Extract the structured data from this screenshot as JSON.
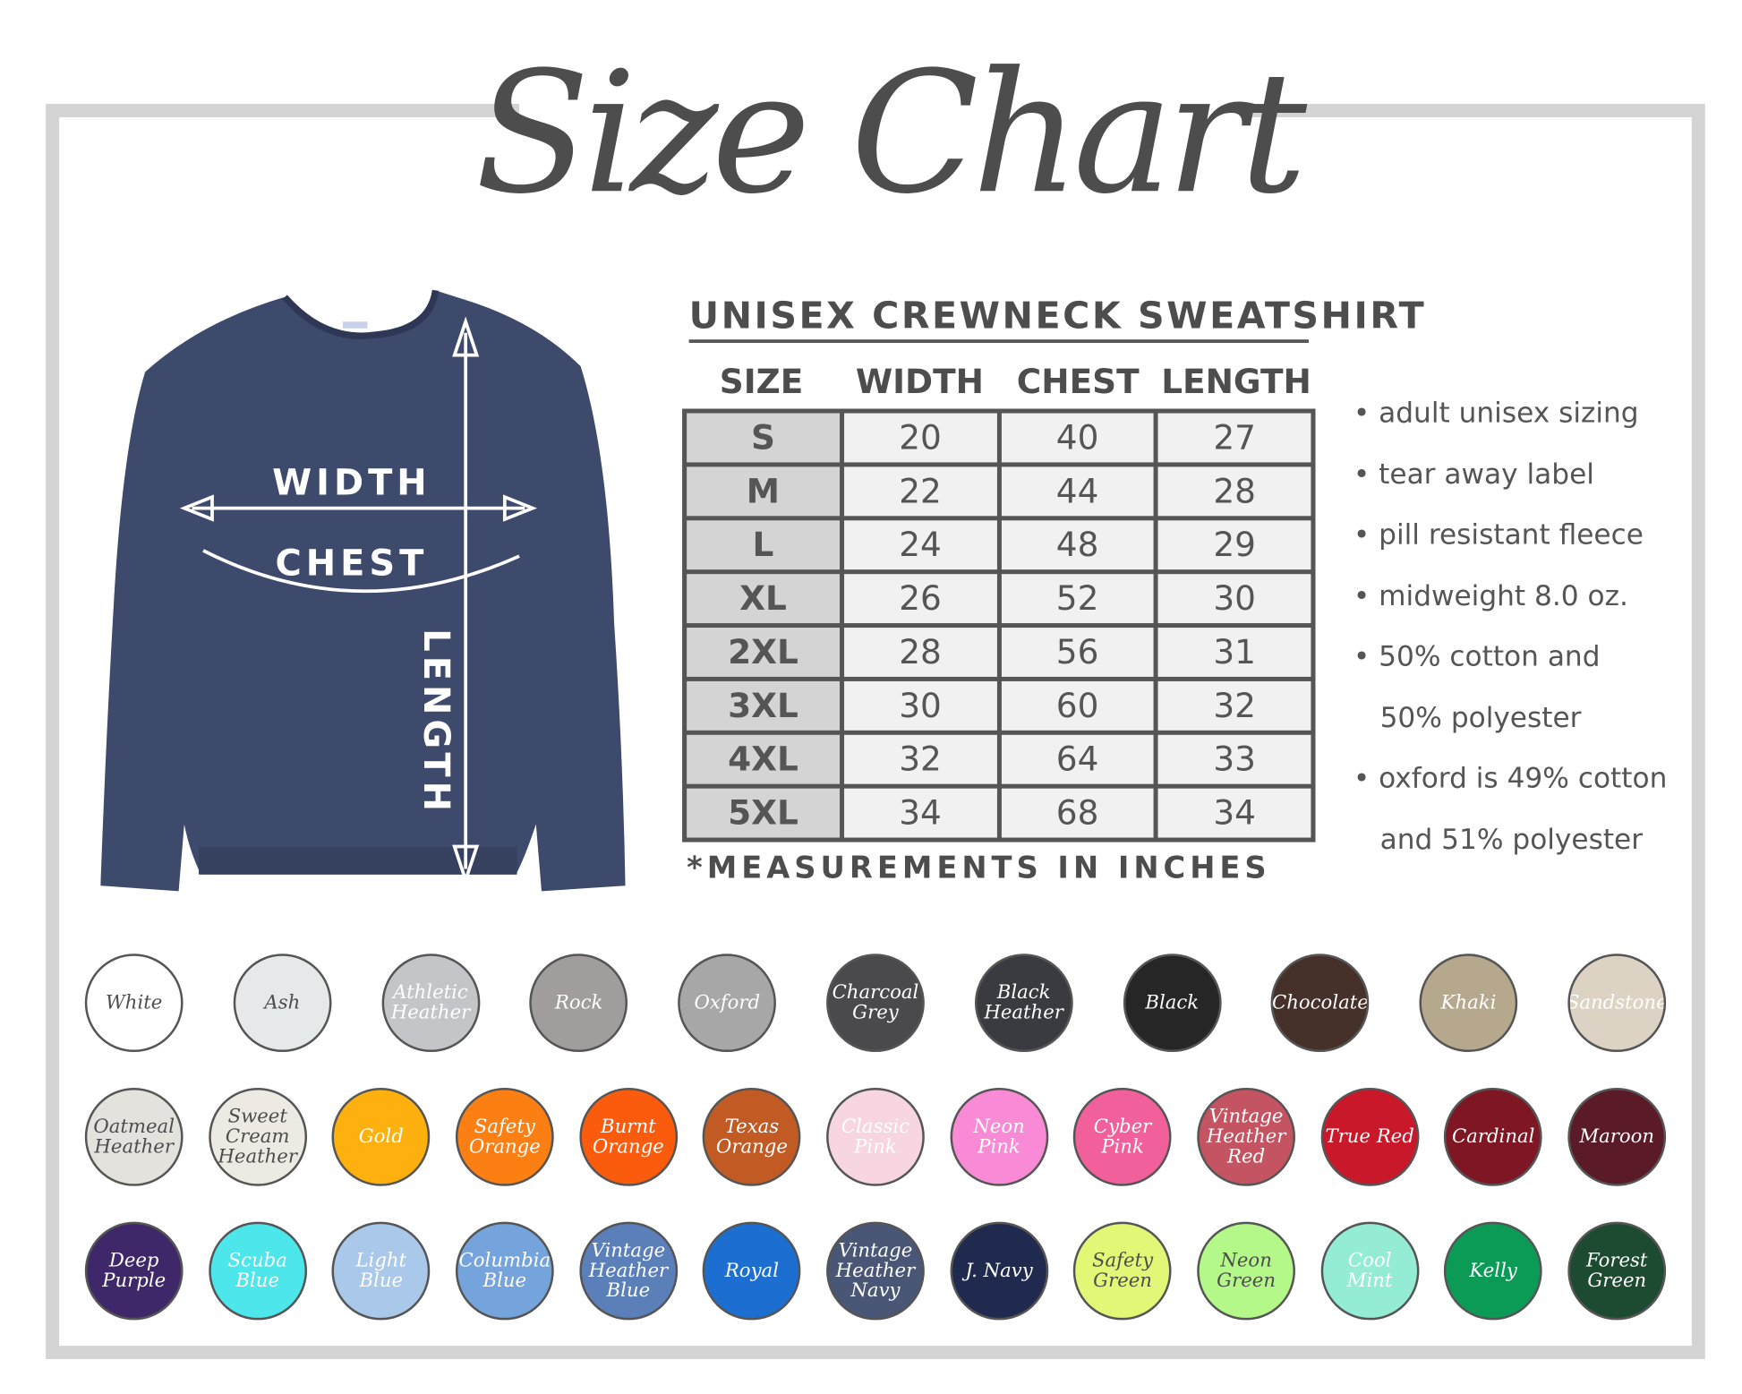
{
  "title": "Size Chart",
  "product_title": "UNISEX CREWNECK SWEATSHIRT",
  "shirt_labels": {
    "width": "WIDTH",
    "chest": "CHEST",
    "length": "LENGTH"
  },
  "table": {
    "headers": [
      "SIZE",
      "WIDTH",
      "CHEST",
      "LENGTH"
    ],
    "rows": [
      [
        "S",
        "20",
        "40",
        "27"
      ],
      [
        "M",
        "22",
        "44",
        "28"
      ],
      [
        "L",
        "24",
        "48",
        "29"
      ],
      [
        "XL",
        "26",
        "52",
        "30"
      ],
      [
        "2XL",
        "28",
        "56",
        "31"
      ],
      [
        "3XL",
        "30",
        "60",
        "32"
      ],
      [
        "4XL",
        "32",
        "64",
        "33"
      ],
      [
        "5XL",
        "34",
        "68",
        "34"
      ]
    ]
  },
  "footnote": "*MEASUREMENTS IN INCHES",
  "features": [
    "• adult unisex sizing",
    "• tear away label",
    "• pill resistant fleece",
    "• midweight 8.0 oz.",
    "• 50% cotton and",
    "   50% polyester",
    "• oxford is 49% cotton",
    "   and 51% polyester"
  ],
  "colors": {
    "frame": "#d4d4d4",
    "text": "#4d4d4d",
    "shirt": "#3e4a6c"
  },
  "swatch_rows": [
    [
      {
        "name": "White",
        "color": "#ffffff",
        "text": "#4d4d4d"
      },
      {
        "name": "Ash",
        "color": "#e6e9ea",
        "text": "#4d4d4d"
      },
      {
        "name": "Athletic Heather",
        "color": "#c4c5c8",
        "text": "#ffffff"
      },
      {
        "name": "Rock",
        "color": "#a19d9c",
        "text": "#ffffff"
      },
      {
        "name": "Oxford",
        "color": "#a7a7a7",
        "text": "#ffffff"
      },
      {
        "name": "Charcoal Grey",
        "color": "#4a4a4c",
        "text": "#ffffff"
      },
      {
        "name": "Black Heather",
        "color": "#3a3b40",
        "text": "#ffffff"
      },
      {
        "name": "Black",
        "color": "#262626",
        "text": "#ffffff"
      },
      {
        "name": "Chocolate",
        "color": "#45302a",
        "text": "#ffffff"
      },
      {
        "name": "Khaki",
        "color": "#b5a88d",
        "text": "#ffffff"
      },
      {
        "name": "Sandstone",
        "color": "#dcd3c5",
        "text": "#ffffff"
      }
    ],
    [
      {
        "name": "Oatmeal Heather",
        "color": "#e4e2dc",
        "text": "#4d4d4d"
      },
      {
        "name": "Sweet Cream Heather",
        "color": "#eceae3",
        "text": "#4d4d4d"
      },
      {
        "name": "Gold",
        "color": "#fdb00e",
        "text": "#ffffff"
      },
      {
        "name": "Safety Orange",
        "color": "#fb7f12",
        "text": "#ffffff"
      },
      {
        "name": "Burnt Orange",
        "color": "#fb5b0d",
        "text": "#ffffff"
      },
      {
        "name": "Texas Orange",
        "color": "#c25a24",
        "text": "#ffffff"
      },
      {
        "name": "Classic Pink",
        "color": "#f8d6e1",
        "text": "#ffffff"
      },
      {
        "name": "Neon Pink",
        "color": "#f98bd6",
        "text": "#ffffff"
      },
      {
        "name": "Cyber Pink",
        "color": "#f1609a",
        "text": "#ffffff"
      },
      {
        "name": "Vintage Heather Red",
        "color": "#c45462",
        "text": "#ffffff"
      },
      {
        "name": "True Red",
        "color": "#c8182a",
        "text": "#ffffff"
      },
      {
        "name": "Cardinal",
        "color": "#7e1623",
        "text": "#ffffff"
      },
      {
        "name": "Maroon",
        "color": "#5b1a28",
        "text": "#ffffff"
      }
    ],
    [
      {
        "name": "Deep Purple",
        "color": "#3e2869",
        "text": "#ffffff"
      },
      {
        "name": "Scuba Blue",
        "color": "#4de6ea",
        "text": "#ffffff"
      },
      {
        "name": "Light Blue",
        "color": "#a9c8ea",
        "text": "#ffffff"
      },
      {
        "name": "Columbia Blue",
        "color": "#74a4db",
        "text": "#ffffff"
      },
      {
        "name": "Vintage Heather Blue",
        "color": "#5b7fb8",
        "text": "#ffffff"
      },
      {
        "name": "Royal",
        "color": "#1c6fd1",
        "text": "#ffffff"
      },
      {
        "name": "Vintage Heather Navy",
        "color": "#495676",
        "text": "#ffffff"
      },
      {
        "name": "J. Navy",
        "color": "#1f2a4e",
        "text": "#ffffff"
      },
      {
        "name": "Safety Green",
        "color": "#e3f777",
        "text": "#4d4d4d"
      },
      {
        "name": "Neon Green",
        "color": "#b4f88a",
        "text": "#4d4d4d"
      },
      {
        "name": "Cool Mint",
        "color": "#93ecd3",
        "text": "#ffffff"
      },
      {
        "name": "Kelly",
        "color": "#0c9a57",
        "text": "#ffffff"
      },
      {
        "name": "Forest Green",
        "color": "#1d4b32",
        "text": "#ffffff"
      }
    ]
  ]
}
